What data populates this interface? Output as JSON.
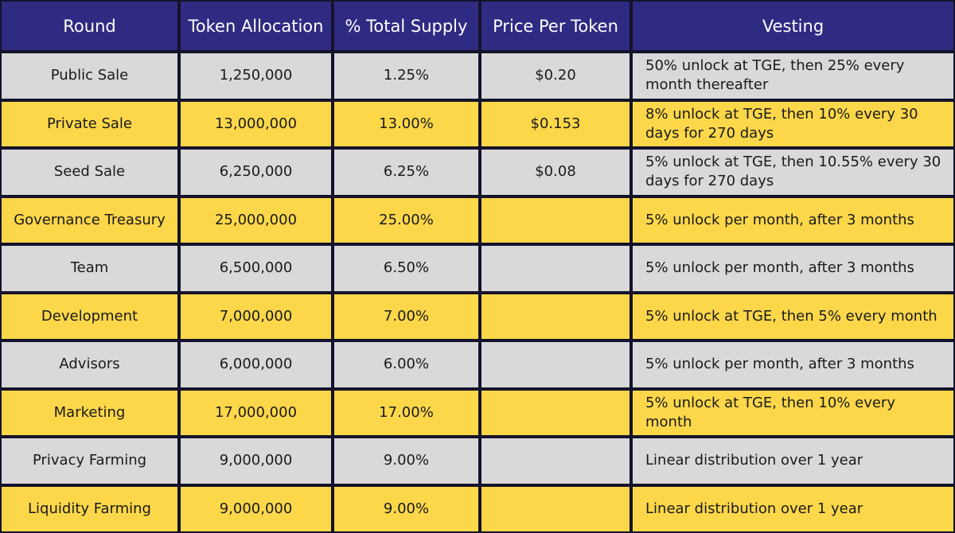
{
  "table": {
    "header": [
      "Round",
      "Token Allocation",
      "% Total Supply",
      "Price Per Token",
      "Vesting"
    ],
    "rows": [
      [
        "Public Sale",
        "1,250,000",
        "1.25%",
        "$0.20",
        "50% unlock at TGE, then 25% every month thereafter"
      ],
      [
        "Private Sale",
        "13,000,000",
        "13.00%",
        "$0.153",
        "8% unlock at TGE, then 10% every 30 days for 270 days"
      ],
      [
        "Seed Sale",
        "6,250,000",
        "6.25%",
        "$0.08",
        "5% unlock at TGE, then 10.55% every 30 days for 270 days"
      ],
      [
        "Governance Treasury",
        "25,000,000",
        "25.00%",
        null,
        "5% unlock per month, after 3 months"
      ],
      [
        "Team",
        "6,500,000",
        "6.50%",
        null,
        "5% unlock per month, after 3 months"
      ],
      [
        "Development",
        "7,000,000",
        "7.00%",
        null,
        "5% unlock at TGE, then 5% every month"
      ],
      [
        "Advisors",
        "6,000,000",
        "6.00%",
        null,
        "5% unlock per month, after 3 months"
      ],
      [
        "Marketing",
        "17,000,000",
        "17.00%",
        null,
        "5% unlock at TGE, then 10% every month"
      ],
      [
        "Privacy Farming",
        "9,000,000",
        "9.00%",
        null,
        "Linear distribution over 1 year"
      ],
      [
        "Liquidity Farming",
        "9,000,000",
        "9.00%",
        null,
        "Linear distribution over 1 year"
      ]
    ]
  }
}
